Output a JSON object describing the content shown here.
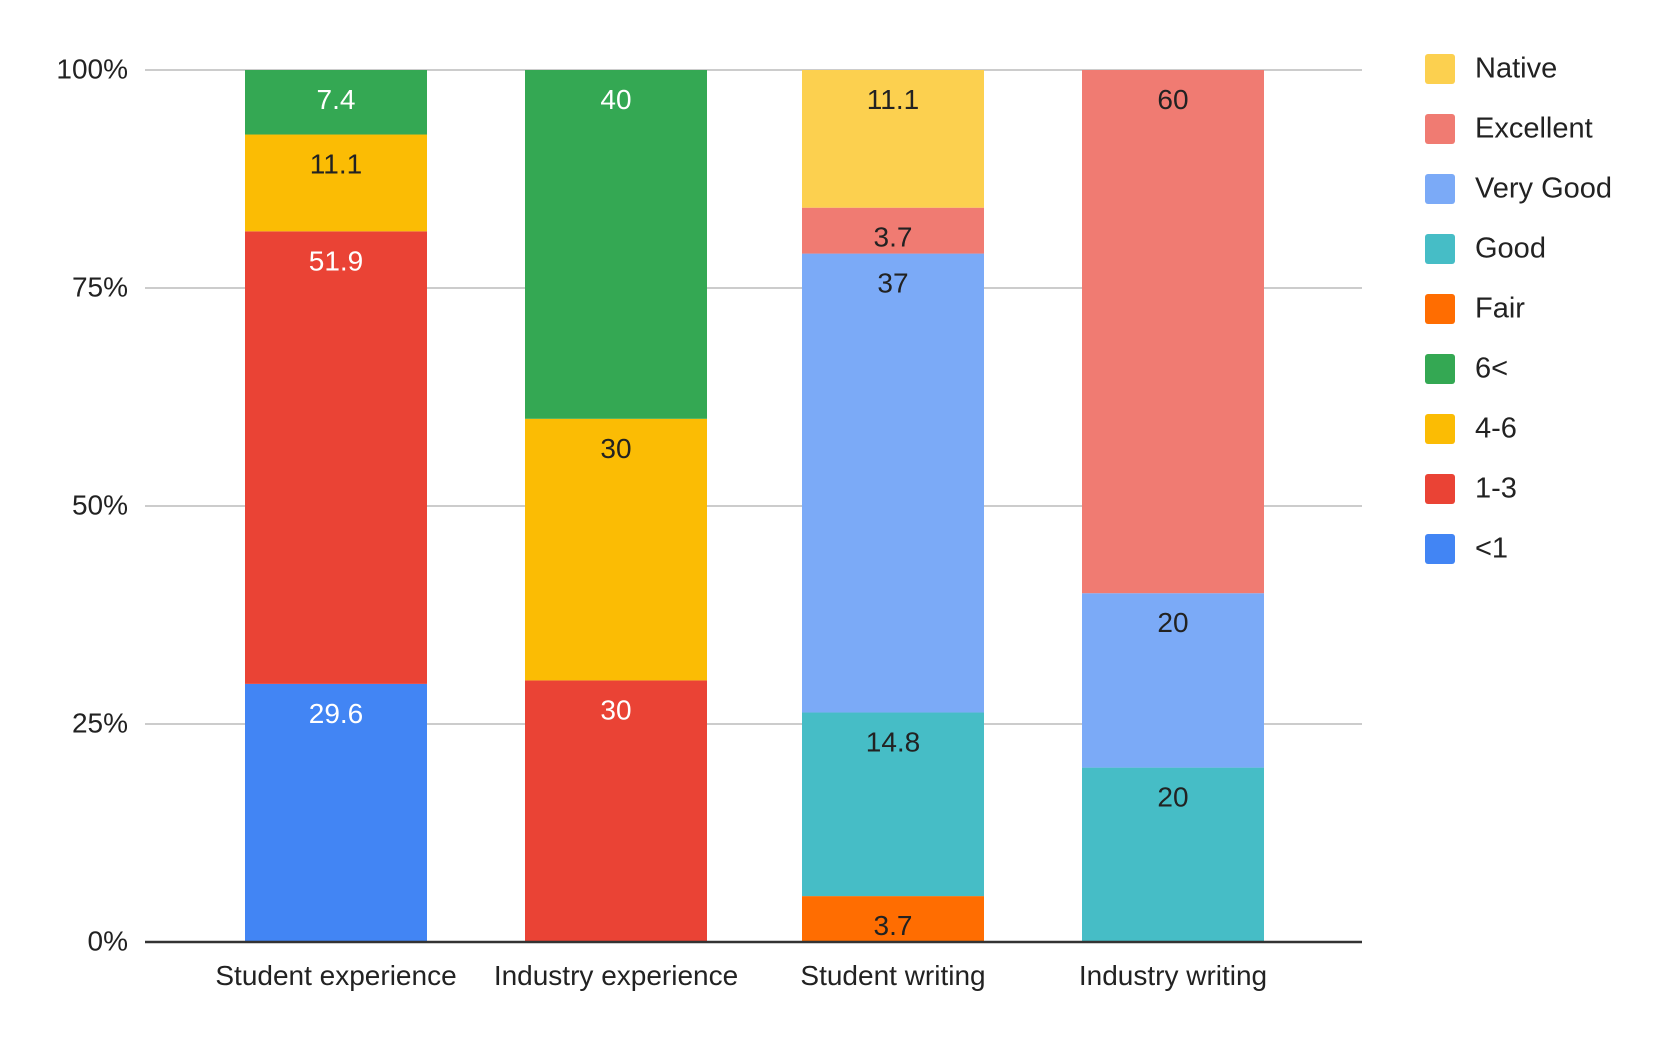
{
  "chart_data": {
    "type": "bar",
    "stacked": true,
    "normalized": true,
    "title": "",
    "xlabel": "",
    "ylabel": "",
    "ylim": [
      0,
      100
    ],
    "yticks": [
      "0%",
      "25%",
      "50%",
      "75%",
      "100%"
    ],
    "categories": [
      "Student experience",
      "Industry experience",
      "Student writing",
      "Industry writing"
    ],
    "legend_position": "right",
    "series": [
      {
        "name": "<1",
        "color": "#4285f4",
        "label_color": "#ffffff",
        "values": [
          29.6,
          0,
          0,
          0
        ]
      },
      {
        "name": "1-3",
        "color": "#ea4335",
        "label_color": "#ffffff",
        "values": [
          51.9,
          30,
          0,
          0
        ]
      },
      {
        "name": "4-6",
        "color": "#fbbc04",
        "label_color": "#222222",
        "values": [
          11.1,
          30,
          0,
          0
        ]
      },
      {
        "name": "6<",
        "color": "#34a853",
        "label_color": "#ffffff",
        "values": [
          7.4,
          40,
          0,
          0
        ]
      },
      {
        "name": "Fair",
        "color": "#ff6d01",
        "label_color": "#222222",
        "values": [
          0,
          0,
          3.7,
          0
        ]
      },
      {
        "name": "Good",
        "color": "#46bdc6",
        "label_color": "#222222",
        "values": [
          0,
          0,
          14.8,
          20
        ]
      },
      {
        "name": "Very Good",
        "color": "#7baaf7",
        "label_color": "#222222",
        "values": [
          0,
          0,
          37,
          20
        ]
      },
      {
        "name": "Excellent",
        "color": "#f07b72",
        "label_color": "#222222",
        "values": [
          0,
          0,
          3.7,
          60
        ]
      },
      {
        "name": "Native",
        "color": "#fcd04f",
        "label_color": "#222222",
        "values": [
          0,
          0,
          11.1,
          0
        ]
      }
    ],
    "legend_order": [
      "Native",
      "Excellent",
      "Very Good",
      "Good",
      "Fair",
      "6<",
      "4-6",
      "1-3",
      "<1"
    ]
  }
}
